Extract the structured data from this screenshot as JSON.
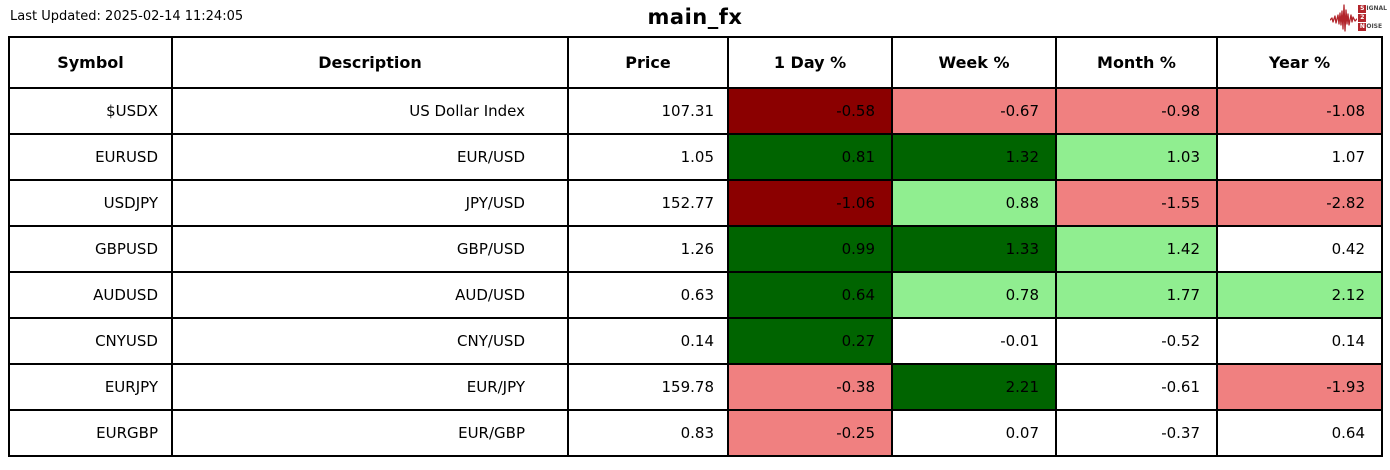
{
  "page": {
    "last_updated": "Last Updated: 2025-02-14 11:24:05",
    "title": "main_fx"
  },
  "logo": {
    "color": "#b2252b",
    "words": [
      {
        "badge": "S",
        "rest": "IGNAL"
      },
      {
        "badge": "2",
        "rest": ""
      },
      {
        "badge": "N",
        "rest": "OISE"
      }
    ]
  },
  "palette": {
    "strong_negative": "#8b0000",
    "negative": "#f08080",
    "strong_positive": "#006400",
    "positive": "#90ee90",
    "neutral": "#ffffff"
  },
  "chart_data": {
    "type": "table",
    "title": "main_fx",
    "columns": [
      "Symbol",
      "Description",
      "Price",
      "1 Day %",
      "Week %",
      "Month %",
      "Year %"
    ],
    "rows": [
      {
        "symbol": "$USDX",
        "description": "US Dollar Index",
        "price": "107.31",
        "changes": [
          {
            "value": "-0.58",
            "tone": "strong_negative"
          },
          {
            "value": "-0.67",
            "tone": "negative"
          },
          {
            "value": "-0.98",
            "tone": "negative"
          },
          {
            "value": "-1.08",
            "tone": "negative"
          }
        ]
      },
      {
        "symbol": "EURUSD",
        "description": "EUR/USD",
        "price": "1.05",
        "changes": [
          {
            "value": "0.81",
            "tone": "strong_positive"
          },
          {
            "value": "1.32",
            "tone": "strong_positive"
          },
          {
            "value": "1.03",
            "tone": "positive"
          },
          {
            "value": "1.07",
            "tone": "neutral"
          }
        ]
      },
      {
        "symbol": "USDJPY",
        "description": "JPY/USD",
        "price": "152.77",
        "changes": [
          {
            "value": "-1.06",
            "tone": "strong_negative"
          },
          {
            "value": "0.88",
            "tone": "positive"
          },
          {
            "value": "-1.55",
            "tone": "negative"
          },
          {
            "value": "-2.82",
            "tone": "negative"
          }
        ]
      },
      {
        "symbol": "GBPUSD",
        "description": "GBP/USD",
        "price": "1.26",
        "changes": [
          {
            "value": "0.99",
            "tone": "strong_positive"
          },
          {
            "value": "1.33",
            "tone": "strong_positive"
          },
          {
            "value": "1.42",
            "tone": "positive"
          },
          {
            "value": "0.42",
            "tone": "neutral"
          }
        ]
      },
      {
        "symbol": "AUDUSD",
        "description": "AUD/USD",
        "price": "0.63",
        "changes": [
          {
            "value": "0.64",
            "tone": "strong_positive"
          },
          {
            "value": "0.78",
            "tone": "positive"
          },
          {
            "value": "1.77",
            "tone": "positive"
          },
          {
            "value": "2.12",
            "tone": "positive"
          }
        ]
      },
      {
        "symbol": "CNYUSD",
        "description": "CNY/USD",
        "price": "0.14",
        "changes": [
          {
            "value": "0.27",
            "tone": "strong_positive"
          },
          {
            "value": "-0.01",
            "tone": "neutral"
          },
          {
            "value": "-0.52",
            "tone": "neutral"
          },
          {
            "value": "0.14",
            "tone": "neutral"
          }
        ]
      },
      {
        "symbol": "EURJPY",
        "description": "EUR/JPY",
        "price": "159.78",
        "changes": [
          {
            "value": "-0.38",
            "tone": "negative"
          },
          {
            "value": "2.21",
            "tone": "strong_positive"
          },
          {
            "value": "-0.61",
            "tone": "neutral"
          },
          {
            "value": "-1.93",
            "tone": "negative"
          }
        ]
      },
      {
        "symbol": "EURGBP",
        "description": "EUR/GBP",
        "price": "0.83",
        "changes": [
          {
            "value": "-0.25",
            "tone": "negative"
          },
          {
            "value": "0.07",
            "tone": "neutral"
          },
          {
            "value": "-0.37",
            "tone": "neutral"
          },
          {
            "value": "0.64",
            "tone": "neutral"
          }
        ]
      }
    ]
  }
}
